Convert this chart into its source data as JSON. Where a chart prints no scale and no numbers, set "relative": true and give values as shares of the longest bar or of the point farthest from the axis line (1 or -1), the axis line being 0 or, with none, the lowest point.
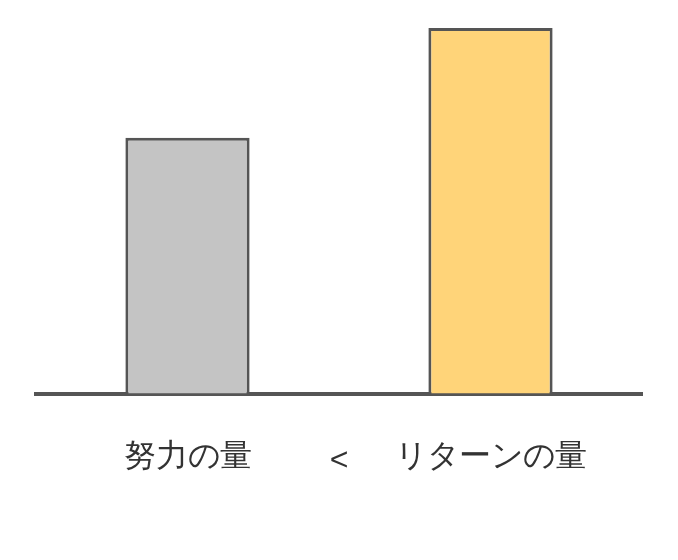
{
  "chart_data": {
    "type": "bar",
    "relative": true,
    "categories": [
      "努力の量",
      "リターンの量"
    ],
    "values": [
      0.7,
      1
    ],
    "colors": [
      "#c4c4c4",
      "#ffd479"
    ],
    "annotations": [
      "<"
    ],
    "grid": false,
    "legend": false
  }
}
